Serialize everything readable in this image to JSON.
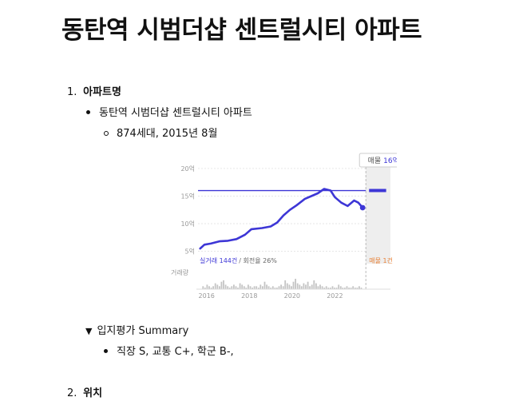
{
  "page": {
    "title": "동탄역 시범더샵 센트럴시티 아파트"
  },
  "sections": [
    {
      "number": "1.",
      "label": "아파트명"
    },
    {
      "number": "2.",
      "label": "위치"
    }
  ],
  "apartment": {
    "name": "동탄역 시범더샵 센트럴시티 아파트",
    "detail": "874세대, 2015년 8월"
  },
  "toggle": {
    "label": "입지평가 Summary",
    "summary": "직장 S, 교통 C+, 학군 B-,"
  },
  "colors": {
    "price_line": "#3d36d6",
    "listing_shade": "#eeeeee",
    "volume_bar": "#c4c4c4",
    "listing_label": "#e8833a",
    "axis_text": "#999999"
  },
  "chart_data": {
    "type": "line",
    "title": "",
    "xlabel": "",
    "ylabel": "",
    "y_unit": "억",
    "ylim": [
      4.5,
      21
    ],
    "yticks": [
      5,
      10,
      15,
      20
    ],
    "ytick_labels": [
      "5억",
      "10억",
      "15억",
      "20억"
    ],
    "xlim": [
      2015.6,
      2024.6
    ],
    "xticks": [
      2016,
      2018,
      2020,
      2022
    ],
    "xtick_labels": [
      "2016",
      "2018",
      "2020",
      "2022"
    ],
    "grid": true,
    "series": [
      {
        "values": [
          [
            2015.7,
            5.5
          ],
          [
            2015.9,
            6.2
          ],
          [
            2016.2,
            6.4
          ],
          [
            2016.6,
            6.8
          ],
          [
            2017.0,
            6.9
          ],
          [
            2017.4,
            7.2
          ],
          [
            2017.8,
            8.0
          ],
          [
            2018.1,
            9.0
          ],
          [
            2018.6,
            9.2
          ],
          [
            2019.0,
            9.5
          ],
          [
            2019.3,
            10.2
          ],
          [
            2019.6,
            11.5
          ],
          [
            2019.9,
            12.5
          ],
          [
            2020.2,
            13.3
          ],
          [
            2020.6,
            14.5
          ],
          [
            2020.9,
            15.0
          ],
          [
            2021.2,
            15.5
          ],
          [
            2021.5,
            16.3
          ],
          [
            2021.8,
            16.0
          ],
          [
            2022.0,
            14.8
          ],
          [
            2022.3,
            13.8
          ],
          [
            2022.6,
            13.2
          ],
          [
            2022.9,
            14.2
          ],
          [
            2023.1,
            13.8
          ],
          [
            2023.3,
            12.9
          ]
        ]
      }
    ],
    "listing_price": {
      "value": 16,
      "label_prefix": "매물",
      "label_value": "16억",
      "x_range": [
        2023.6,
        2024.4
      ]
    },
    "stats": {
      "trade_count_label": "실거래 144건",
      "turnover_label": "/ 회전율 26%",
      "listing_count_label": "매물 1건"
    },
    "volume_label": "거래량",
    "volume": [
      2,
      1,
      3,
      2,
      1,
      2,
      4,
      3,
      2,
      5,
      6,
      3,
      2,
      1,
      2,
      3,
      2,
      1,
      4,
      3,
      2,
      1,
      3,
      2,
      1,
      2,
      2,
      1,
      3,
      2,
      5,
      3,
      2,
      1,
      2,
      1,
      1,
      2,
      3,
      2,
      6,
      4,
      3,
      2,
      5,
      7,
      4,
      3,
      2,
      4,
      3,
      5,
      2,
      3,
      6,
      4,
      2,
      3,
      2,
      1,
      2,
      1,
      1,
      2,
      1,
      1,
      3,
      2,
      1,
      1,
      2,
      1,
      1,
      2,
      1,
      1,
      2,
      1
    ]
  }
}
